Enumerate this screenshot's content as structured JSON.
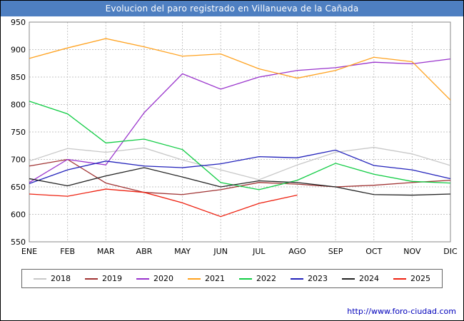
{
  "title": "Evolucion del paro registrado en Villanueva de la Cañada",
  "footer": {
    "url": "http://www.foro-ciudad.com"
  },
  "chart_data": {
    "type": "line",
    "title": "Evolucion del paro registrado en Villanueva de la Cañada",
    "categories": [
      "ENE",
      "FEB",
      "MAR",
      "ABR",
      "MAY",
      "JUN",
      "JUL",
      "AGO",
      "SEP",
      "OCT",
      "NOV",
      "DIC"
    ],
    "ylim": [
      550,
      950
    ],
    "yticks": [
      550,
      600,
      650,
      700,
      750,
      800,
      850,
      900,
      950
    ],
    "grid": true,
    "legend_position": "bottom",
    "series": [
      {
        "name": "2018",
        "color": "#c8c8c8",
        "values": [
          697,
          720,
          713,
          721,
          699,
          681,
          663,
          690,
          713,
          722,
          710,
          689
        ]
      },
      {
        "name": "2019",
        "color": "#a03333",
        "values": [
          688,
          700,
          657,
          640,
          636,
          645,
          658,
          655,
          650,
          653,
          658,
          662
        ]
      },
      {
        "name": "2020",
        "color": "#9933cc",
        "values": [
          658,
          700,
          690,
          785,
          856,
          828,
          850,
          862,
          867,
          877,
          874,
          883
        ]
      },
      {
        "name": "2021",
        "color": "#ffa21f",
        "values": [
          884,
          903,
          920,
          905,
          888,
          892,
          865,
          848,
          862,
          886,
          878,
          808
        ]
      },
      {
        "name": "2022",
        "color": "#11cc44",
        "values": [
          806,
          783,
          730,
          737,
          718,
          658,
          645,
          662,
          693,
          673,
          660,
          657
        ]
      },
      {
        "name": "2023",
        "color": "#2222bb",
        "values": [
          656,
          681,
          697,
          688,
          685,
          692,
          705,
          703,
          717,
          689,
          681,
          665
        ]
      },
      {
        "name": "2024",
        "color": "#222222",
        "values": [
          665,
          652,
          670,
          685,
          668,
          650,
          661,
          658,
          650,
          636,
          635,
          637
        ]
      },
      {
        "name": "2025",
        "color": "#ee2211",
        "values": [
          637,
          633,
          646,
          640,
          621,
          596,
          620,
          635
        ]
      }
    ]
  }
}
